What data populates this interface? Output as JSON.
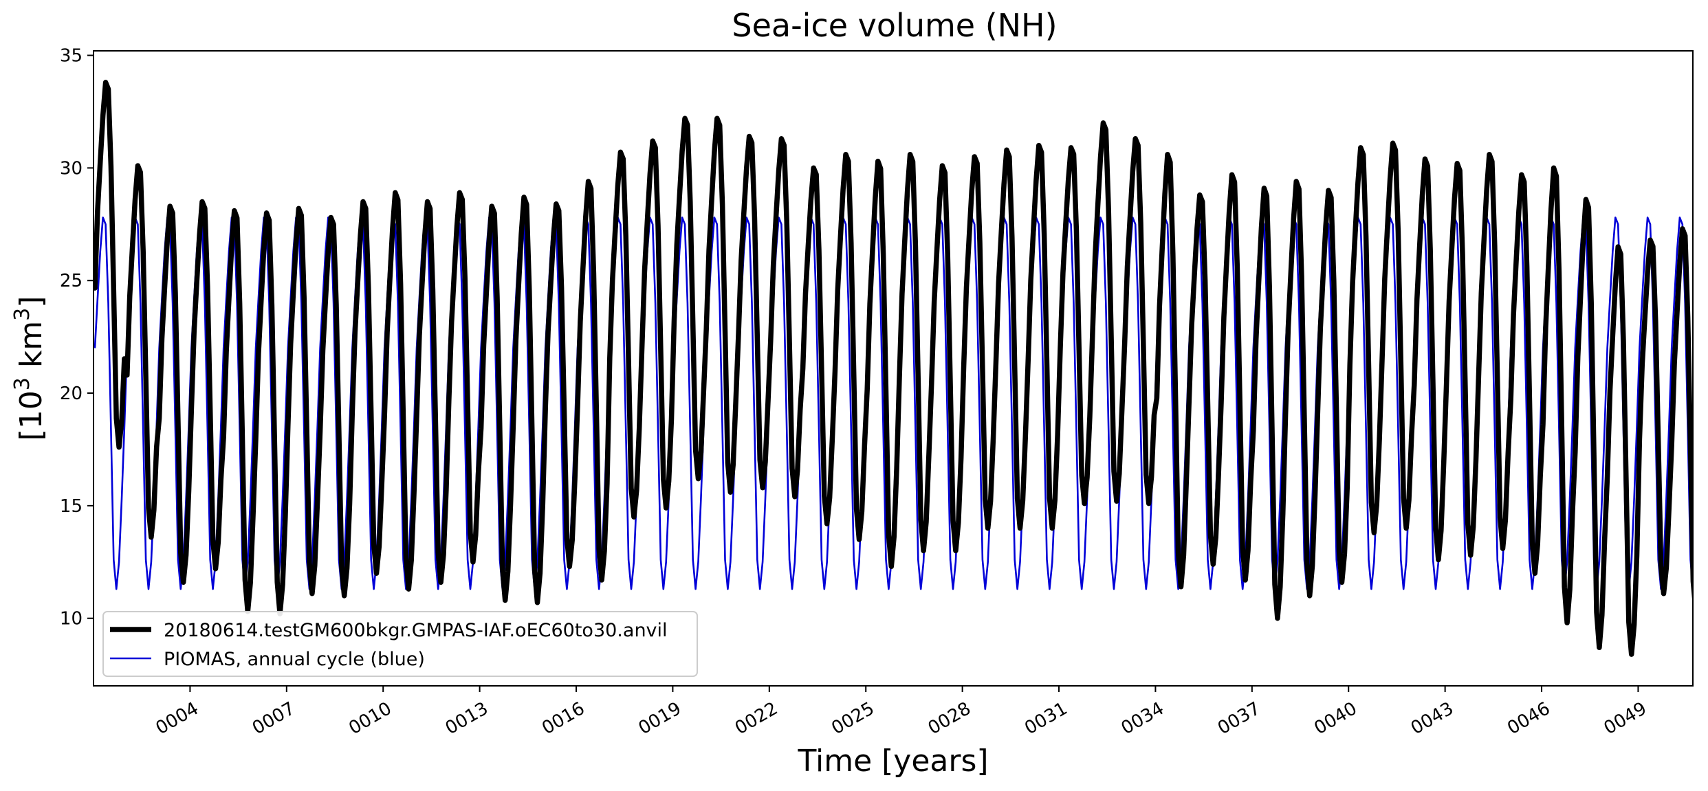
{
  "chart_data": {
    "type": "line",
    "title": "Sea-ice volume (NH)",
    "xlabel": "Time [years]",
    "ylabel": "[10",
    "ylabel_sup": "3",
    "ylabel_unit": " km",
    "ylabel_unit_sup": "3",
    "ylabel_close": "]",
    "xlim": [
      1.0,
      50.7
    ],
    "ylim": [
      7.0,
      35.2
    ],
    "x_ticks": [
      {
        "value": 4,
        "label": "0004"
      },
      {
        "value": 7,
        "label": "0007"
      },
      {
        "value": 10,
        "label": "0010"
      },
      {
        "value": 13,
        "label": "0013"
      },
      {
        "value": 16,
        "label": "0016"
      },
      {
        "value": 19,
        "label": "0019"
      },
      {
        "value": 22,
        "label": "0022"
      },
      {
        "value": 25,
        "label": "0025"
      },
      {
        "value": 28,
        "label": "0028"
      },
      {
        "value": 31,
        "label": "0031"
      },
      {
        "value": 34,
        "label": "0034"
      },
      {
        "value": 37,
        "label": "0037"
      },
      {
        "value": 40,
        "label": "0040"
      },
      {
        "value": 43,
        "label": "0043"
      },
      {
        "value": 46,
        "label": "0046"
      },
      {
        "value": 49,
        "label": "0049"
      }
    ],
    "y_ticks": [
      {
        "value": 10,
        "label": "10"
      },
      {
        "value": 15,
        "label": "15"
      },
      {
        "value": 20,
        "label": "20"
      },
      {
        "value": 25,
        "label": "25"
      },
      {
        "value": 30,
        "label": "30"
      },
      {
        "value": 35,
        "label": "35"
      }
    ],
    "legend_position": "lower-left",
    "series": [
      {
        "name": "20180614.testGM600bkgr.GMPAS-IAF.oEC60to30.anvil",
        "color": "#000000",
        "style": "thick",
        "annual_max": [
          33.8,
          30.1,
          28.3,
          28.5,
          28.1,
          28.0,
          28.2,
          27.8,
          28.5,
          28.9,
          28.5,
          28.9,
          28.3,
          28.7,
          28.4,
          29.4,
          30.7,
          31.2,
          32.2,
          32.2,
          31.4,
          31.3,
          30.0,
          30.6,
          30.3,
          30.6,
          30.1,
          30.5,
          30.8,
          31.0,
          30.9,
          32.0,
          31.3,
          30.6,
          28.8,
          29.7,
          29.1,
          29.4,
          29.0,
          30.9,
          31.1,
          30.4,
          30.2,
          30.6,
          29.7,
          30.0,
          28.6,
          26.5,
          26.8,
          27.3
        ],
        "annual_min": [
          17.6,
          13.6,
          11.6,
          12.2,
          10.3,
          10.2,
          11.1,
          11.0,
          12.0,
          11.3,
          11.6,
          12.5,
          10.8,
          10.7,
          12.3,
          11.7,
          14.5,
          14.9,
          16.2,
          15.6,
          15.8,
          15.4,
          14.2,
          13.5,
          12.3,
          13.0,
          13.0,
          14.0,
          14.0,
          14.0,
          15.1,
          15.2,
          15.1,
          11.4,
          12.4,
          11.7,
          10.0,
          11.0,
          11.6,
          13.8,
          14.0,
          12.6,
          12.8,
          13.1,
          12.0,
          9.8,
          8.7,
          8.4,
          11.1,
          10.3
        ]
      },
      {
        "name": "PIOMAS, annual cycle (blue)",
        "color": "#0000d8",
        "style": "thin",
        "annual_cycle": [
          22.0,
          24.2,
          26.3,
          27.8,
          27.5,
          24.0,
          18.4,
          12.6,
          11.3,
          12.5,
          15.3,
          18.5
        ]
      }
    ]
  }
}
